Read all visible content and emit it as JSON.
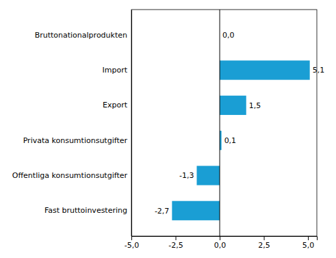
{
  "chart_data": {
    "type": "bar",
    "orientation": "horizontal",
    "categories": [
      "Fast bruttoinvestering",
      "Offentliga konsumtionsutgifter",
      "Privata konsumtionsutgifter",
      "Export",
      "Import",
      "Bruttonationalprodukten"
    ],
    "values": [
      -2.7,
      -1.3,
      0.1,
      1.5,
      5.1,
      0.0
    ],
    "value_labels": [
      "-2,7",
      "-1,3",
      "0,1",
      "1,5",
      "5,1",
      "0,0"
    ],
    "data_labels": true,
    "color": "#1a9ed4",
    "xlim": [
      -5.0,
      5.5
    ],
    "xticks": [
      {
        "value": -5.0,
        "label": "-5,0"
      },
      {
        "value": -2.5,
        "label": "-2,5"
      },
      {
        "value": 0.0,
        "label": "0,0"
      },
      {
        "value": 2.5,
        "label": "2,5"
      },
      {
        "value": 5.0,
        "label": "5,0"
      }
    ],
    "grid": false
  }
}
